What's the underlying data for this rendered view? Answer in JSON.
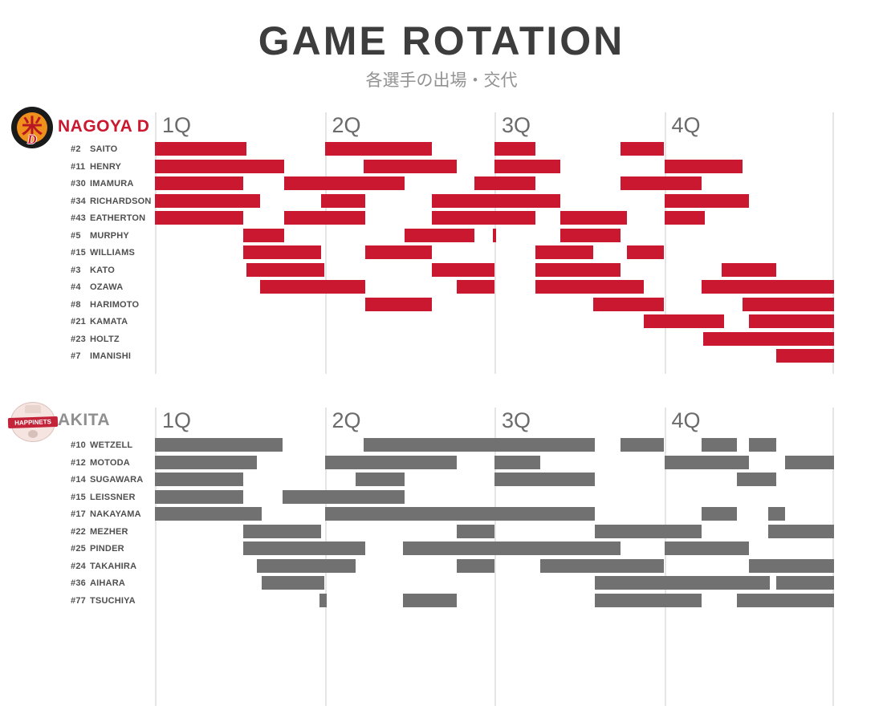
{
  "title": "GAME ROTATION",
  "subtitle": "各選手の出場・交代",
  "chart_data": {
    "type": "bar",
    "subtype": "gantt_rotation",
    "title": "GAME ROTATION",
    "subtitle": "各選手の出場・交代",
    "x_axis": {
      "ticks": [
        "1Q",
        "2Q",
        "3Q",
        "4Q"
      ],
      "minutes_per_quarter": 10,
      "range_minutes": [
        0,
        40
      ],
      "gridlines": true
    },
    "units": "minutes",
    "teams": [
      {
        "name": "NAGOYA D",
        "name_color": "#c9182f",
        "bar_color": "#c9182f",
        "logo_glyph": "米",
        "players": [
          {
            "number": "#2",
            "name": "SAITO",
            "stints": [
              [
                0,
                5.4
              ],
              [
                10,
                16.3
              ],
              [
                20,
                22.4
              ],
              [
                27.4,
                30
              ]
            ]
          },
          {
            "number": "#11",
            "name": "HENRY",
            "stints": [
              [
                0,
                7.6
              ],
              [
                12.3,
                17.8
              ],
              [
                20,
                23.9
              ],
              [
                30,
                34.6
              ]
            ]
          },
          {
            "number": "#30",
            "name": "IMAMURA",
            "stints": [
              [
                0,
                5.2
              ],
              [
                7.6,
                14.7
              ],
              [
                18.8,
                22.4
              ],
              [
                27.4,
                32.2
              ]
            ]
          },
          {
            "number": "#34",
            "name": "RICHARDSON",
            "stints": [
              [
                0,
                6.2
              ],
              [
                9.8,
                12.4
              ],
              [
                16.3,
                23.9
              ],
              [
                30,
                35
              ]
            ]
          },
          {
            "number": "#43",
            "name": "EATHERTON",
            "stints": [
              [
                0,
                5.2
              ],
              [
                7.6,
                12.4
              ],
              [
                16.3,
                22.4
              ],
              [
                23.9,
                27.8
              ],
              [
                30,
                32.4
              ]
            ]
          },
          {
            "number": "#5",
            "name": "MURPHY",
            "stints": [
              [
                5.2,
                7.6
              ],
              [
                14.7,
                18.8
              ],
              [
                19.9,
                20.1
              ],
              [
                23.9,
                27.4
              ]
            ]
          },
          {
            "number": "#15",
            "name": "WILLIAMS",
            "stints": [
              [
                5.2,
                9.8
              ],
              [
                12.4,
                16.3
              ],
              [
                22.4,
                25.8
              ],
              [
                27.8,
                30
              ]
            ]
          },
          {
            "number": "#3",
            "name": "KATO",
            "stints": [
              [
                5.4,
                10
              ],
              [
                16.3,
                20
              ],
              [
                22.4,
                27.4
              ],
              [
                33.4,
                36.6
              ]
            ]
          },
          {
            "number": "#4",
            "name": "OZAWA",
            "stints": [
              [
                6.2,
                12.4
              ],
              [
                17.8,
                20
              ],
              [
                22.4,
                28.8
              ],
              [
                32.2,
                40
              ]
            ]
          },
          {
            "number": "#8",
            "name": "HARIMOTO",
            "stints": [
              [
                12.4,
                16.3
              ],
              [
                25.8,
                30
              ],
              [
                34.6,
                40
              ]
            ]
          },
          {
            "number": "#21",
            "name": "KAMATA",
            "stints": [
              [
                28.8,
                33.5
              ],
              [
                35,
                40
              ]
            ]
          },
          {
            "number": "#23",
            "name": "HOLTZ",
            "stints": [
              [
                32.3,
                40
              ]
            ]
          },
          {
            "number": "#7",
            "name": "IMANISHI",
            "stints": [
              [
                36.6,
                40
              ]
            ]
          }
        ]
      },
      {
        "name": "AKITA",
        "name_color": "#8f8f8f",
        "bar_color": "#717171",
        "logo_text": "HAPPINETS",
        "players": [
          {
            "number": "#10",
            "name": "WETZELL",
            "stints": [
              [
                0,
                7.5
              ],
              [
                12.3,
                25.9
              ],
              [
                27.4,
                30
              ],
              [
                32.2,
                34.3
              ],
              [
                35,
                36.6
              ]
            ]
          },
          {
            "number": "#12",
            "name": "MOTODA",
            "stints": [
              [
                0,
                6
              ],
              [
                10,
                17.8
              ],
              [
                20,
                22.7
              ],
              [
                30,
                35
              ],
              [
                37.1,
                40
              ]
            ]
          },
          {
            "number": "#14",
            "name": "SUGAWARA",
            "stints": [
              [
                0,
                5.2
              ],
              [
                11.8,
                14.7
              ],
              [
                20,
                25.9
              ],
              [
                34.3,
                36.6
              ]
            ]
          },
          {
            "number": "#15",
            "name": "LEISSNER",
            "stints": [
              [
                0,
                5.2
              ],
              [
                7.5,
                14.7
              ]
            ]
          },
          {
            "number": "#17",
            "name": "NAKAYAMA",
            "stints": [
              [
                0,
                6.3
              ],
              [
                10,
                25.9
              ],
              [
                32.2,
                34.3
              ],
              [
                36.1,
                37.1
              ]
            ]
          },
          {
            "number": "#22",
            "name": "MEZHER",
            "stints": [
              [
                5.2,
                9.8
              ],
              [
                17.8,
                20
              ],
              [
                25.9,
                32.2
              ],
              [
                36.1,
                40
              ]
            ]
          },
          {
            "number": "#25",
            "name": "PINDER",
            "stints": [
              [
                5.2,
                12.4
              ],
              [
                14.6,
                27.4
              ],
              [
                30,
                35
              ]
            ]
          },
          {
            "number": "#24",
            "name": "TAKAHIRA",
            "stints": [
              [
                6,
                11.8
              ],
              [
                17.8,
                20
              ],
              [
                22.7,
                30
              ],
              [
                35,
                40
              ]
            ]
          },
          {
            "number": "#36",
            "name": "AIHARA",
            "stints": [
              [
                6.3,
                10
              ],
              [
                25.9,
                36.2
              ],
              [
                36.6,
                40
              ]
            ]
          },
          {
            "number": "#77",
            "name": "TSUCHIYA",
            "stints": [
              [
                9.7,
                10.1
              ],
              [
                14.6,
                17.8
              ],
              [
                25.9,
                32.2
              ],
              [
                34.3,
                40
              ]
            ]
          }
        ]
      }
    ]
  }
}
